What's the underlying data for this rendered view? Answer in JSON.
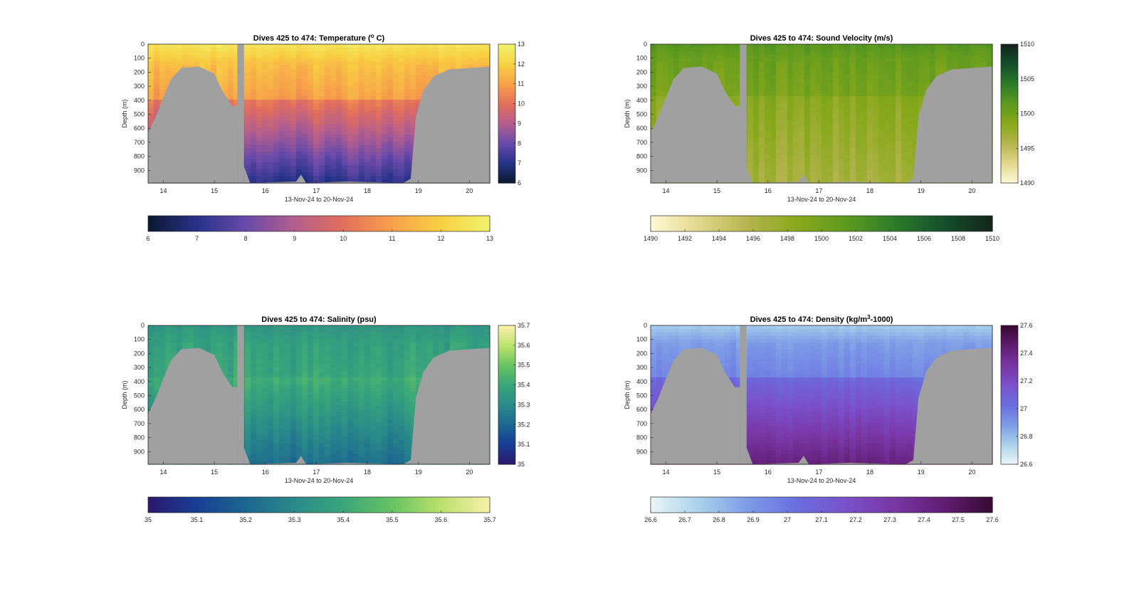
{
  "figure": {
    "background": "#ffffff",
    "mask_color": "#a0a0a0"
  },
  "chart_data": [
    {
      "type": "heatmap",
      "title_parts": [
        "Dives 425 to 474: Temperature (",
        "o",
        " C)"
      ],
      "title_sup": 1,
      "xlabel": "13-Nov-24 to 20-Nov-24",
      "ylabel": "Depth (m)",
      "xlim": [
        13.7,
        20.4
      ],
      "xticks": [
        14,
        15,
        16,
        17,
        18,
        19,
        20
      ],
      "ylim": [
        0,
        990
      ],
      "yticks": [
        0,
        100,
        200,
        300,
        400,
        500,
        600,
        700,
        800,
        900
      ],
      "clim": [
        6,
        13
      ],
      "cbar_ticks": [
        6,
        7,
        8,
        9,
        10,
        11,
        12,
        13
      ],
      "hbar_ticks": [
        6,
        7,
        8,
        9,
        10,
        11,
        12,
        13
      ],
      "colormap": [
        "#0b1a33",
        "#27338a",
        "#6a4aaa",
        "#b45e8e",
        "#e26e5c",
        "#f7a04a",
        "#f8ce42",
        "#f0f26a"
      ],
      "profile": {
        "surface": 12.6,
        "mix_depth": 150,
        "mid": 10.2,
        "deep": 7.0,
        "noise": 0.35
      }
    },
    {
      "type": "heatmap",
      "title_parts": [
        "Dives 425 to 474: Sound Velocity (m/s)"
      ],
      "xlabel": "13-Nov-24 to 20-Nov-24",
      "ylabel": "Depth (m)",
      "xlim": [
        13.7,
        20.4
      ],
      "xticks": [
        14,
        15,
        16,
        17,
        18,
        19,
        20
      ],
      "ylim": [
        0,
        990
      ],
      "yticks": [
        0,
        100,
        200,
        300,
        400,
        500,
        600,
        700,
        800,
        900
      ],
      "clim": [
        1490,
        1510
      ],
      "cbar_ticks": [
        1490,
        1495,
        1500,
        1505,
        1510
      ],
      "hbar_ticks": [
        1490,
        1492,
        1494,
        1496,
        1498,
        1500,
        1502,
        1504,
        1506,
        1508,
        1510
      ],
      "colormap": [
        "#fdf8d4",
        "#e2d68a",
        "#b4b44c",
        "#88a81c",
        "#5e9a1e",
        "#2e7c2a",
        "#14512c",
        "#14261c"
      ],
      "profile": {
        "surface": 1501.8,
        "mix_depth": 120,
        "mid": 1498.5,
        "deep": 1496.5,
        "noise": 0.9
      }
    },
    {
      "type": "heatmap",
      "title_parts": [
        "Dives 425 to 474: Salinity (psu)"
      ],
      "xlabel": "13-Nov-24 to 20-Nov-24",
      "ylabel": "Depth (m)",
      "xlim": [
        13.7,
        20.4
      ],
      "xticks": [
        14,
        15,
        16,
        17,
        18,
        19,
        20
      ],
      "ylim": [
        0,
        990
      ],
      "yticks": [
        0,
        100,
        200,
        300,
        400,
        500,
        600,
        700,
        800,
        900
      ],
      "clim": [
        35,
        35.7
      ],
      "cbar_ticks": [
        35,
        35.1,
        35.2,
        35.3,
        35.4,
        35.5,
        35.6,
        35.7
      ],
      "hbar_ticks": [
        35,
        35.1,
        35.2,
        35.3,
        35.4,
        35.5,
        35.6,
        35.7
      ],
      "colormap": [
        "#2a1a6e",
        "#183f96",
        "#1c6790",
        "#2a8a8a",
        "#3aa67a",
        "#66c262",
        "#b8e06c",
        "#f8f0a8"
      ],
      "profile": {
        "surface": 35.34,
        "mix_depth": 120,
        "mid": 35.42,
        "deep": 35.22,
        "noise": 0.04
      }
    },
    {
      "type": "heatmap",
      "title_parts": [
        "Dives 425 to 474: Density (kg/m",
        "3",
        "-1000)"
      ],
      "title_sup": 1,
      "xlabel": "13-Nov-24 to 20-Nov-24",
      "ylabel": "Depth (m)",
      "xlim": [
        13.7,
        20.4
      ],
      "xticks": [
        14,
        15,
        16,
        17,
        18,
        19,
        20
      ],
      "ylim": [
        0,
        990
      ],
      "yticks": [
        0,
        100,
        200,
        300,
        400,
        500,
        600,
        700,
        800,
        900
      ],
      "clim": [
        26.6,
        27.6
      ],
      "cbar_ticks": [
        26.6,
        26.8,
        27,
        27.2,
        27.4,
        27.6
      ],
      "hbar_ticks": [
        26.6,
        26.7,
        26.8,
        26.9,
        27,
        27.1,
        27.2,
        27.3,
        27.4,
        27.5,
        27.6
      ],
      "colormap": [
        "#e8f4f6",
        "#a8d0ea",
        "#7c9ae6",
        "#6a6ee0",
        "#7a52cc",
        "#7a36a4",
        "#621e74",
        "#380a34"
      ],
      "profile": {
        "surface": 26.75,
        "mix_depth": 120,
        "mid": 27.05,
        "deep": 27.42,
        "noise": 0.03
      }
    }
  ],
  "mask": {
    "gap_columns": [
      15.45,
      15.58
    ],
    "left_bump": [
      [
        13.7,
        630
      ],
      [
        13.85,
        520
      ],
      [
        14.0,
        380
      ],
      [
        14.15,
        250
      ],
      [
        14.35,
        170
      ],
      [
        14.7,
        160
      ],
      [
        15.0,
        210
      ],
      [
        15.15,
        330
      ],
      [
        15.35,
        440
      ],
      [
        15.45,
        440
      ]
    ],
    "right_bump": [
      [
        18.85,
        960
      ],
      [
        18.95,
        520
      ],
      [
        19.1,
        330
      ],
      [
        19.3,
        230
      ],
      [
        19.6,
        180
      ],
      [
        20.4,
        160
      ]
    ],
    "middle_bottom": [
      [
        15.58,
        870
      ],
      [
        15.7,
        990
      ],
      [
        16.6,
        980
      ],
      [
        16.7,
        930
      ],
      [
        16.8,
        990
      ],
      [
        17.6,
        980
      ],
      [
        18.7,
        990
      ],
      [
        18.85,
        960
      ]
    ]
  }
}
